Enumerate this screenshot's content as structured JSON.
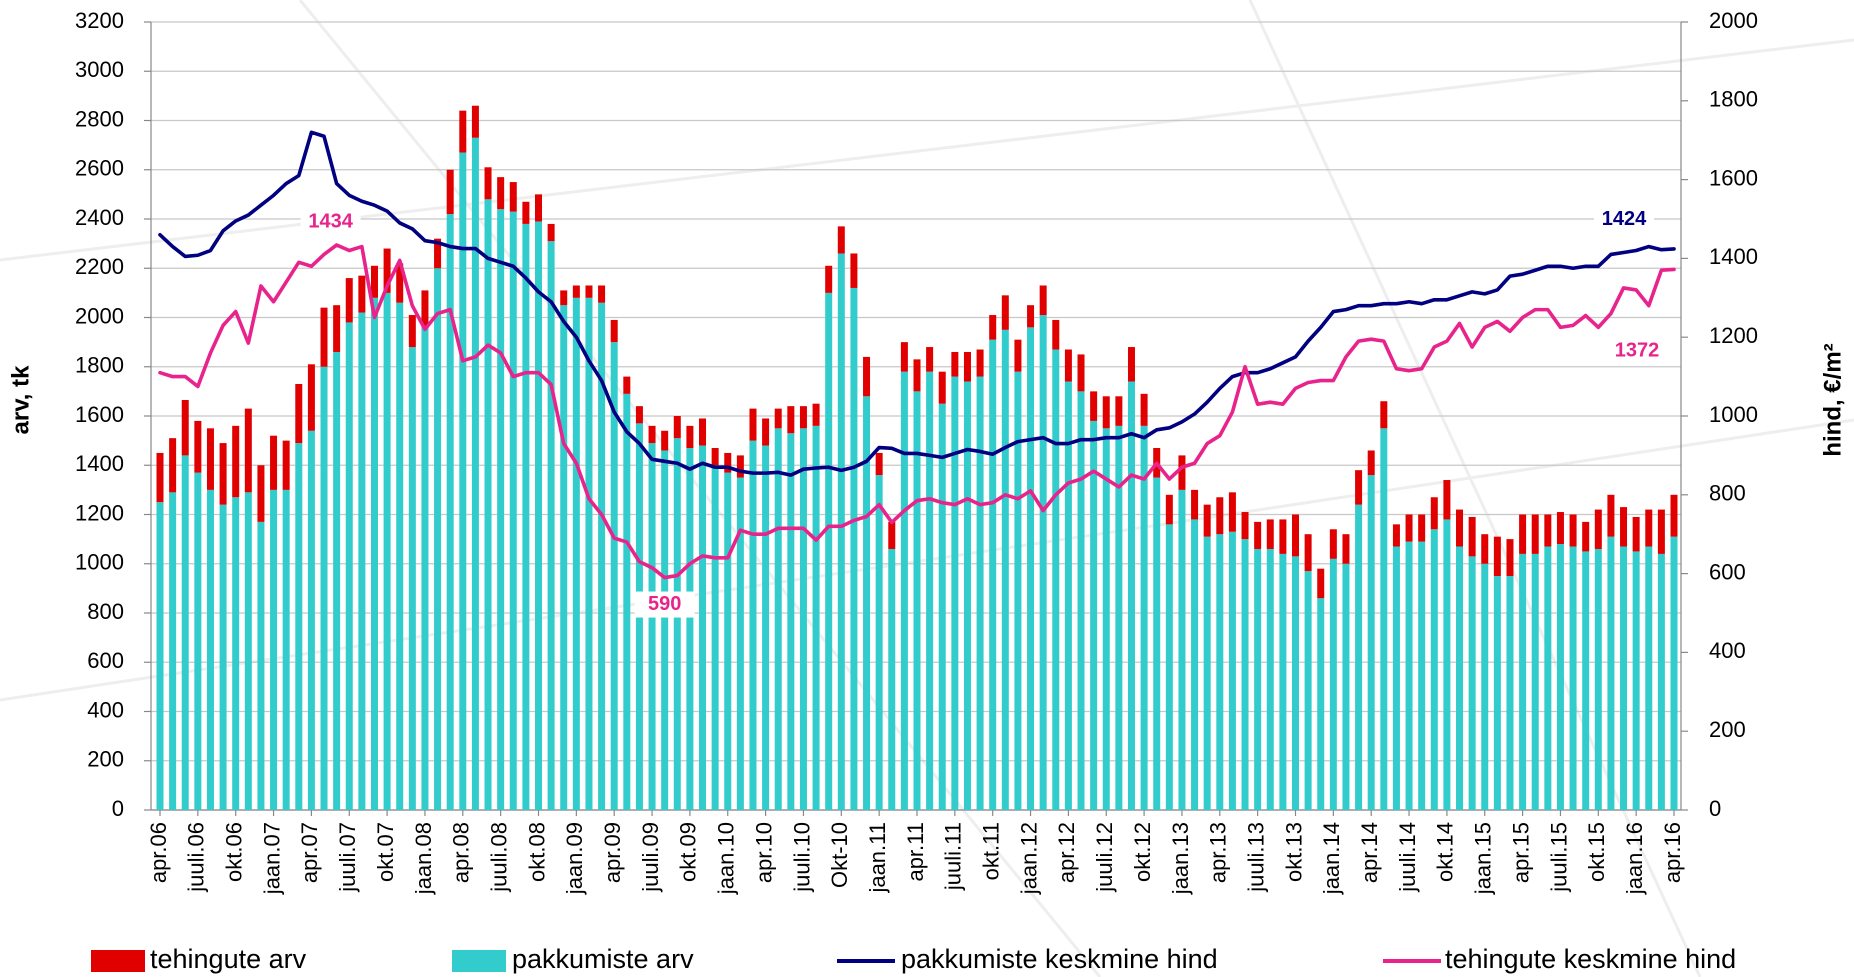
{
  "chart_data": {
    "type": "bar-line",
    "categories": [
      "apr.06",
      null,
      null,
      "juuli.06",
      null,
      null,
      "okt.06",
      null,
      null,
      "jaan.07",
      null,
      null,
      "apr.07",
      null,
      null,
      "juuli.07",
      null,
      null,
      "okt.07",
      null,
      null,
      "jaan.08",
      null,
      null,
      "apr.08",
      null,
      null,
      "juuli.08",
      null,
      null,
      "okt.08",
      null,
      null,
      "jaan.09",
      null,
      null,
      "apr.09",
      null,
      null,
      "juuli.09",
      null,
      null,
      "okt.09",
      null,
      null,
      "jaan.10",
      null,
      null,
      "apr.10",
      null,
      null,
      "juuli.10",
      null,
      null,
      "Okt-10",
      null,
      null,
      "jaan.11",
      null,
      null,
      "apr.11",
      null,
      null,
      "juuli.11",
      null,
      null,
      "okt.11",
      null,
      null,
      "jaan.12",
      null,
      null,
      "apr.12",
      null,
      null,
      "juuli.12",
      null,
      null,
      "okt.12",
      null,
      null,
      "jaan.13",
      null,
      null,
      "apr.13",
      null,
      null,
      "juuli.13",
      null,
      null,
      "okt.13",
      null,
      null,
      "jaan.14",
      null,
      null,
      "apr.14",
      null,
      null,
      "juuli.14",
      null,
      null,
      "okt.14",
      null,
      null,
      "jaan.15",
      null,
      null,
      "apr.15",
      null,
      null,
      "juuli.15",
      null,
      null,
      "okt.15",
      null,
      null,
      "jaan.16",
      null,
      null,
      "apr.16"
    ],
    "series": [
      {
        "name": "tehingute arv",
        "type": "bar",
        "color": "#e00000",
        "values": [
          200,
          220,
          225,
          210,
          250,
          250,
          290,
          340,
          230,
          220,
          200,
          240,
          270,
          240,
          190,
          180,
          150,
          130,
          180,
          160,
          130,
          150,
          120,
          180,
          170,
          130,
          130,
          130,
          120,
          90,
          110,
          70,
          60,
          50,
          50,
          70,
          90,
          70,
          70,
          70,
          80,
          90,
          90,
          110,
          70,
          80,
          90,
          130,
          110,
          80,
          110,
          90,
          90,
          110,
          110,
          140,
          160,
          90,
          110,
          120,
          130,
          100,
          130,
          100,
          120,
          110,
          100,
          140,
          130,
          90,
          120,
          120,
          130,
          150,
          120,
          130,
          120,
          140,
          130,
          120,
          120,
          140,
          120,
          130,
          150,
          160,
          110,
          110,
          120,
          140,
          170,
          150,
          120,
          120,
          120,
          140,
          100,
          110,
          90,
          110,
          110,
          130,
          160,
          150,
          160,
          120,
          160,
          150,
          160,
          160,
          130,
          130,
          130,
          120,
          160,
          170,
          160,
          140,
          150,
          180,
          170
        ]
      },
      {
        "name": "pakkumiste arv",
        "type": "bar",
        "color": "#33cccc",
        "values": [
          1250,
          1290,
          1440,
          1370,
          1300,
          1240,
          1270,
          1290,
          1170,
          1300,
          1300,
          1490,
          1540,
          1800,
          1860,
          1980,
          2020,
          2080,
          2100,
          2060,
          1880,
          1960,
          2200,
          2420,
          2670,
          2730,
          2480,
          2440,
          2430,
          2380,
          2390,
          2310,
          2050,
          2080,
          2080,
          2060,
          1900,
          1690,
          1570,
          1490,
          1460,
          1510,
          1470,
          1480,
          1400,
          1370,
          1350,
          1500,
          1480,
          1550,
          1530,
          1550,
          1560,
          2100,
          2260,
          2120,
          1680,
          1360,
          1060,
          1780,
          1700,
          1780,
          1650,
          1760,
          1740,
          1760,
          1910,
          1950,
          1780,
          1960,
          2010,
          1870,
          1740,
          1700,
          1580,
          1550,
          1560,
          1740,
          1560,
          1350,
          1160,
          1300,
          1180,
          1110,
          1120,
          1130,
          1100,
          1060,
          1060,
          1040,
          1030,
          970,
          860,
          1020,
          1000,
          1240,
          1360,
          1550,
          1070,
          1090,
          1090,
          1140,
          1180,
          1070,
          1030,
          1000,
          950,
          950,
          1040,
          1040,
          1070,
          1080,
          1070,
          1050,
          1060,
          1110,
          1070,
          1050,
          1070,
          1040,
          1110
        ]
      },
      {
        "name": "pakkumiste keskmine hind",
        "type": "line",
        "axis": "y2",
        "color": "#000080",
        "values": [
          1460,
          1430,
          1405,
          1408,
          1420,
          1470,
          1495,
          1510,
          1535,
          1560,
          1590,
          1610,
          1720,
          1710,
          1590,
          1560,
          1545,
          1535,
          1520,
          1490,
          1475,
          1445,
          1440,
          1430,
          1425,
          1425,
          1400,
          1390,
          1380,
          1350,
          1315,
          1290,
          1240,
          1200,
          1140,
          1090,
          1010,
          960,
          930,
          890,
          885,
          880,
          865,
          880,
          870,
          870,
          860,
          855,
          855,
          857,
          850,
          865,
          868,
          870,
          862,
          870,
          885,
          920,
          918,
          905,
          905,
          900,
          895,
          905,
          915,
          910,
          903,
          920,
          935,
          940,
          945,
          930,
          930,
          940,
          940,
          945,
          945,
          955,
          945,
          965,
          970,
          985,
          1005,
          1035,
          1070,
          1100,
          1110,
          1110,
          1120,
          1135,
          1150,
          1190,
          1225,
          1265,
          1270,
          1280,
          1280,
          1285,
          1285,
          1290,
          1285,
          1295,
          1295,
          1305,
          1315,
          1310,
          1320,
          1355,
          1360,
          1370,
          1380,
          1380,
          1375,
          1380,
          1380,
          1410,
          1415,
          1420,
          1430,
          1422,
          1424
        ]
      },
      {
        "name": "tehingute keskmine hind",
        "type": "line",
        "axis": "y2",
        "color": "#e8248c",
        "values": [
          1110,
          1100,
          1100,
          1075,
          1160,
          1230,
          1265,
          1185,
          1330,
          1290,
          1340,
          1390,
          1380,
          1410,
          1434,
          1420,
          1430,
          1250,
          1330,
          1395,
          1280,
          1220,
          1260,
          1270,
          1140,
          1150,
          1180,
          1160,
          1100,
          1110,
          1110,
          1080,
          930,
          880,
          790,
          750,
          690,
          680,
          630,
          615,
          590,
          595,
          625,
          645,
          640,
          640,
          710,
          700,
          700,
          715,
          715,
          715,
          685,
          720,
          720,
          735,
          745,
          775,
          730,
          760,
          785,
          790,
          780,
          775,
          790,
          775,
          780,
          800,
          790,
          810,
          760,
          800,
          830,
          840,
          860,
          840,
          820,
          850,
          840,
          880,
          840,
          870,
          880,
          930,
          950,
          1010,
          1125,
          1030,
          1035,
          1030,
          1070,
          1085,
          1090,
          1090,
          1150,
          1190,
          1195,
          1190,
          1120,
          1115,
          1120,
          1175,
          1190,
          1235,
          1175,
          1225,
          1240,
          1215,
          1250,
          1270,
          1270,
          1225,
          1230,
          1255,
          1225,
          1260,
          1325,
          1320,
          1280,
          1370,
          1372
        ]
      }
    ],
    "y_label": "arv, tk",
    "y2_label": "hind, €/m²",
    "ylim": [
      0,
      3200
    ],
    "yticks": [
      0,
      200,
      400,
      600,
      800,
      1000,
      1200,
      1400,
      1600,
      1800,
      2000,
      2200,
      2400,
      2600,
      2800,
      3000,
      3200
    ],
    "y2lim": [
      0,
      2000
    ],
    "y2ticks": [
      0,
      200,
      400,
      600,
      800,
      1000,
      1200,
      1400,
      1600,
      1800,
      2000
    ],
    "grid": true,
    "legend": "bottom"
  }
}
